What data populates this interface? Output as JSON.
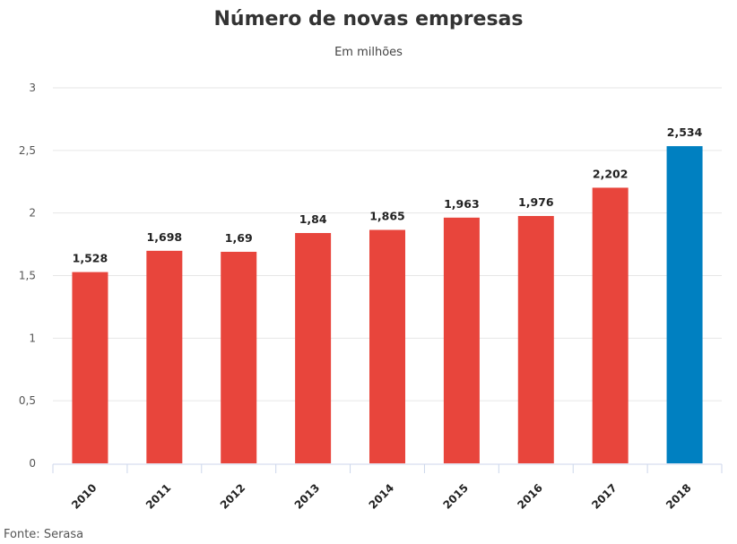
{
  "chart_data": {
    "type": "bar",
    "title": "Número de novas empresas",
    "subtitle": "Em milhões",
    "categories": [
      "2010",
      "2011",
      "2012",
      "2013",
      "2014",
      "2015",
      "2016",
      "2017",
      "2018"
    ],
    "values": [
      1.528,
      1.698,
      1.69,
      1.84,
      1.865,
      1.963,
      1.976,
      2.202,
      2.534
    ],
    "data_labels": [
      "1,528",
      "1,698",
      "1,69",
      "1,84",
      "1,865",
      "1,963",
      "1,976",
      "2,202",
      "2,534"
    ],
    "yticks": [
      0,
      0.5,
      1,
      1.5,
      2,
      2.5,
      3
    ],
    "ytick_labels": [
      "0",
      "0,5",
      "1",
      "1,5",
      "2",
      "2,5",
      "3"
    ],
    "ylim": [
      0,
      3
    ],
    "xlabel": "",
    "ylabel": "",
    "grid": true,
    "colors": [
      "#e8453c",
      "#e8453c",
      "#e8453c",
      "#e8453c",
      "#e8453c",
      "#e8453c",
      "#e8453c",
      "#e8453c",
      "#0080c1"
    ],
    "source": "Fonte: Serasa"
  }
}
